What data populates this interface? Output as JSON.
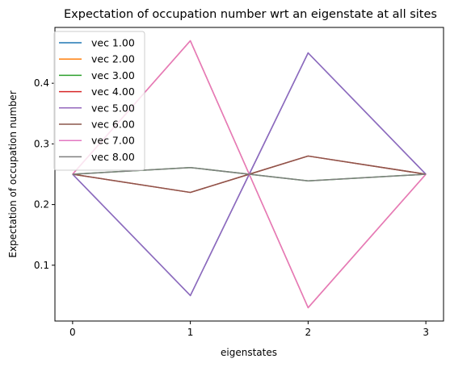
{
  "chart_data": {
    "type": "line",
    "title": "Expectation of occupation number wrt an eigenstate at all sites",
    "xlabel": "eigenstates",
    "ylabel": "Expectation of occupation number",
    "x": [
      0,
      1,
      1.5,
      2,
      3
    ],
    "x_ticks": [
      0,
      1,
      2,
      3
    ],
    "x_tick_labels": [
      "0",
      "1",
      "2",
      "3"
    ],
    "y_ticks": [
      0.1,
      0.2,
      0.3,
      0.4
    ],
    "y_tick_labels": [
      "0.1",
      "0.2",
      "0.3",
      "0.4"
    ],
    "xlim": [
      -0.15,
      3.15
    ],
    "ylim": [
      0.008,
      0.492
    ],
    "grid": false,
    "legend_position": "top-left",
    "series": [
      {
        "name": "vec 1.00",
        "color": "#1f77b4",
        "values": [
          0.25,
          0.05,
          0.25,
          0.45,
          0.25
        ]
      },
      {
        "name": "vec 2.00",
        "color": "#ff7f0e",
        "values": [
          0.25,
          0.47,
          0.25,
          0.03,
          0.25
        ]
      },
      {
        "name": "vec 3.00",
        "color": "#2ca02c",
        "values": [
          0.25,
          0.261,
          0.25,
          0.239,
          0.25
        ]
      },
      {
        "name": "vec 4.00",
        "color": "#d62728",
        "values": [
          0.25,
          0.22,
          0.25,
          0.28,
          0.25
        ]
      },
      {
        "name": "vec 5.00",
        "color": "#9467bd",
        "values": [
          0.25,
          0.05,
          0.25,
          0.45,
          0.25
        ]
      },
      {
        "name": "vec 6.00",
        "color": "#8c564b",
        "values": [
          0.25,
          0.22,
          0.25,
          0.28,
          0.25
        ]
      },
      {
        "name": "vec 7.00",
        "color": "#e377c2",
        "values": [
          0.25,
          0.47,
          0.25,
          0.03,
          0.25
        ]
      },
      {
        "name": "vec 8.00",
        "color": "#7f7f7f",
        "values": [
          0.25,
          0.261,
          0.25,
          0.239,
          0.25
        ]
      }
    ]
  }
}
